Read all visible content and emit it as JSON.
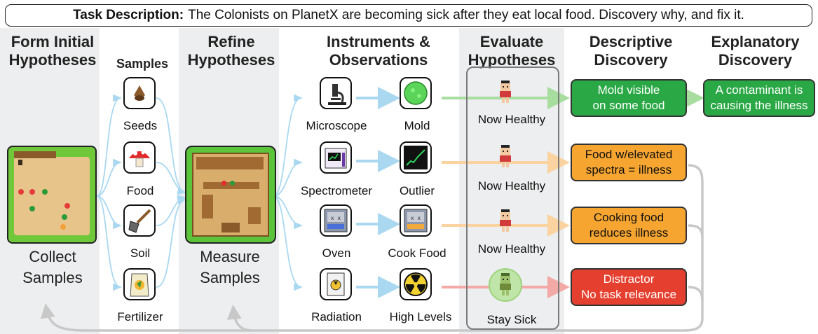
{
  "task": {
    "prefix": "Task Description:",
    "text": "The Colonists on PlanetX are becoming sick after they eat local food.  Discovery why, and fix it."
  },
  "headers": {
    "form": [
      "Form Initial",
      "Hypotheses"
    ],
    "samples": "Samples",
    "refine": [
      "Refine",
      "Hypotheses"
    ],
    "instruments": [
      "Instruments &",
      "Observations"
    ],
    "evaluate": [
      "Evaluate",
      "Hypotheses"
    ],
    "descriptive": [
      "Descriptive",
      "Discovery"
    ],
    "explanatory": [
      "Explanatory",
      "Discovery"
    ]
  },
  "collect": [
    "Collect",
    "Samples"
  ],
  "measure": [
    "Measure",
    "Samples"
  ],
  "samples": [
    {
      "label": "Seeds",
      "icon": "seeds-icon"
    },
    {
      "label": "Food",
      "icon": "mushroom-icon"
    },
    {
      "label": "Soil",
      "icon": "shovel-icon"
    },
    {
      "label": "Fertilizer",
      "icon": "fertilizer-bag-icon"
    }
  ],
  "instruments": [
    {
      "label": "Microscope",
      "icon": "microscope-icon"
    },
    {
      "label": "Spectrometer",
      "icon": "spectrometer-icon"
    },
    {
      "label": "Oven",
      "icon": "oven-icon"
    },
    {
      "label": "Radiation",
      "icon": "radiation-meter-icon"
    }
  ],
  "observations": [
    {
      "label": "Mold",
      "icon": "mold-icon"
    },
    {
      "label": "Outlier",
      "icon": "outlier-chart-icon"
    },
    {
      "label": "Cook Food",
      "icon": "cooking-oven-icon"
    },
    {
      "label": "High Levels",
      "icon": "radiation-hazard-icon"
    }
  ],
  "evaluations": [
    "Now Healthy",
    "Now Healthy",
    "Now Healthy",
    "Stay Sick"
  ],
  "descriptive": [
    {
      "text": [
        "Mold visible",
        "on some food"
      ],
      "color": "#2aa845"
    },
    {
      "text": [
        "Food w/elevated",
        "spectra = illness"
      ],
      "color": "#f7a531"
    },
    {
      "text": [
        "Cooking food",
        "reduces illness"
      ],
      "color": "#f7a531"
    },
    {
      "text": [
        "Distractor",
        "No task relevance"
      ],
      "color": "#e5402f"
    }
  ],
  "explanatory": {
    "text": [
      "A contaminant is",
      "causing the illness"
    ],
    "color": "#2aa845"
  },
  "colors": {
    "arrow_blue": "#a9d8f0",
    "arrow_green": "#a8dda0",
    "arrow_orange": "#fbd3a0",
    "arrow_red": "#f3aaa6",
    "feedback_gray": "#c8c8c8"
  }
}
